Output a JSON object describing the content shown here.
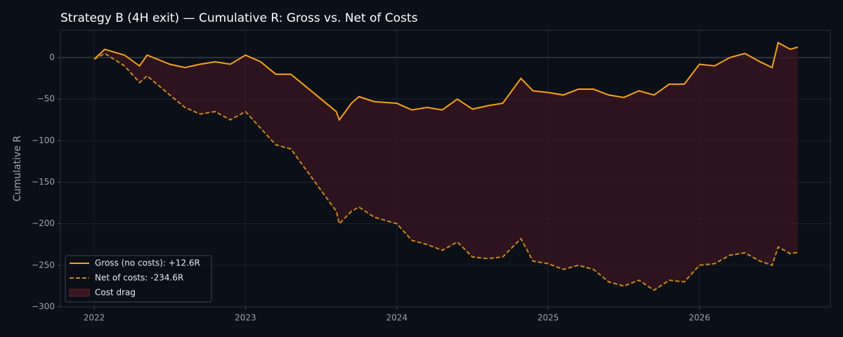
{
  "chart_data": {
    "type": "line",
    "title": "Strategy B (4H exit) — Cumulative R: Gross vs. Net of Costs",
    "ylabel": "Cumulative R",
    "x": [
      2022.0,
      2022.07,
      2022.2,
      2022.3,
      2022.35,
      2022.5,
      2022.6,
      2022.7,
      2022.8,
      2022.9,
      2023.0,
      2023.1,
      2023.2,
      2023.3,
      2023.4,
      2023.5,
      2023.6,
      2023.62,
      2023.7,
      2023.75,
      2023.85,
      2024.0,
      2024.1,
      2024.2,
      2024.3,
      2024.4,
      2024.5,
      2024.6,
      2024.7,
      2024.82,
      2024.9,
      2025.0,
      2025.1,
      2025.2,
      2025.3,
      2025.4,
      2025.5,
      2025.6,
      2025.7,
      2025.8,
      2025.9,
      2026.0,
      2026.1,
      2026.2,
      2026.3,
      2026.4,
      2026.48,
      2026.52,
      2026.6,
      2026.65
    ],
    "series": [
      {
        "name": "Gross (no costs): +12.6R",
        "color": "#f5a21b",
        "dashed": false,
        "values": [
          -2,
          10,
          3,
          -10,
          3,
          -8,
          -12,
          -8,
          -5,
          -8,
          3,
          -5,
          -20,
          -20,
          -35,
          -50,
          -65,
          -75,
          -55,
          -47,
          -53,
          -55,
          -63,
          -60,
          -63,
          -50,
          -62,
          -58,
          -55,
          -25,
          -40,
          -42,
          -45,
          -38,
          -38,
          -45,
          -48,
          -40,
          -45,
          -32,
          -32,
          -8,
          -10,
          0,
          5,
          -5,
          -12,
          18,
          10,
          12.6
        ]
      },
      {
        "name": "Net of costs: -234.6R",
        "color": "#c8861f",
        "dashed": true,
        "values": [
          -2,
          5,
          -10,
          -30,
          -22,
          -45,
          -60,
          -68,
          -65,
          -75,
          -65,
          -85,
          -105,
          -110,
          -135,
          -160,
          -185,
          -200,
          -185,
          -180,
          -192,
          -200,
          -220,
          -225,
          -232,
          -222,
          -240,
          -242,
          -240,
          -218,
          -245,
          -248,
          -255,
          -250,
          -255,
          -270,
          -275,
          -268,
          -280,
          -268,
          -270,
          -250,
          -248,
          -238,
          -235,
          -245,
          -250,
          -228,
          -236,
          -234.6
        ]
      }
    ],
    "fill_between": {
      "name": "Cost drag",
      "color": "#3a1520"
    },
    "xlim": [
      2021.777,
      2026.865
    ],
    "xticks": [
      2022,
      2023,
      2024,
      2025,
      2026
    ],
    "ylim": [
      -300,
      33
    ],
    "yticks": [
      {
        "value": -300,
        "label": "−300"
      },
      {
        "value": -250,
        "label": "−250"
      },
      {
        "value": -200,
        "label": "−200"
      },
      {
        "value": -150,
        "label": "−150"
      },
      {
        "value": -100,
        "label": "−100"
      },
      {
        "value": -50,
        "label": "−50"
      },
      0
    ],
    "grid": true,
    "legend": "lower left"
  }
}
